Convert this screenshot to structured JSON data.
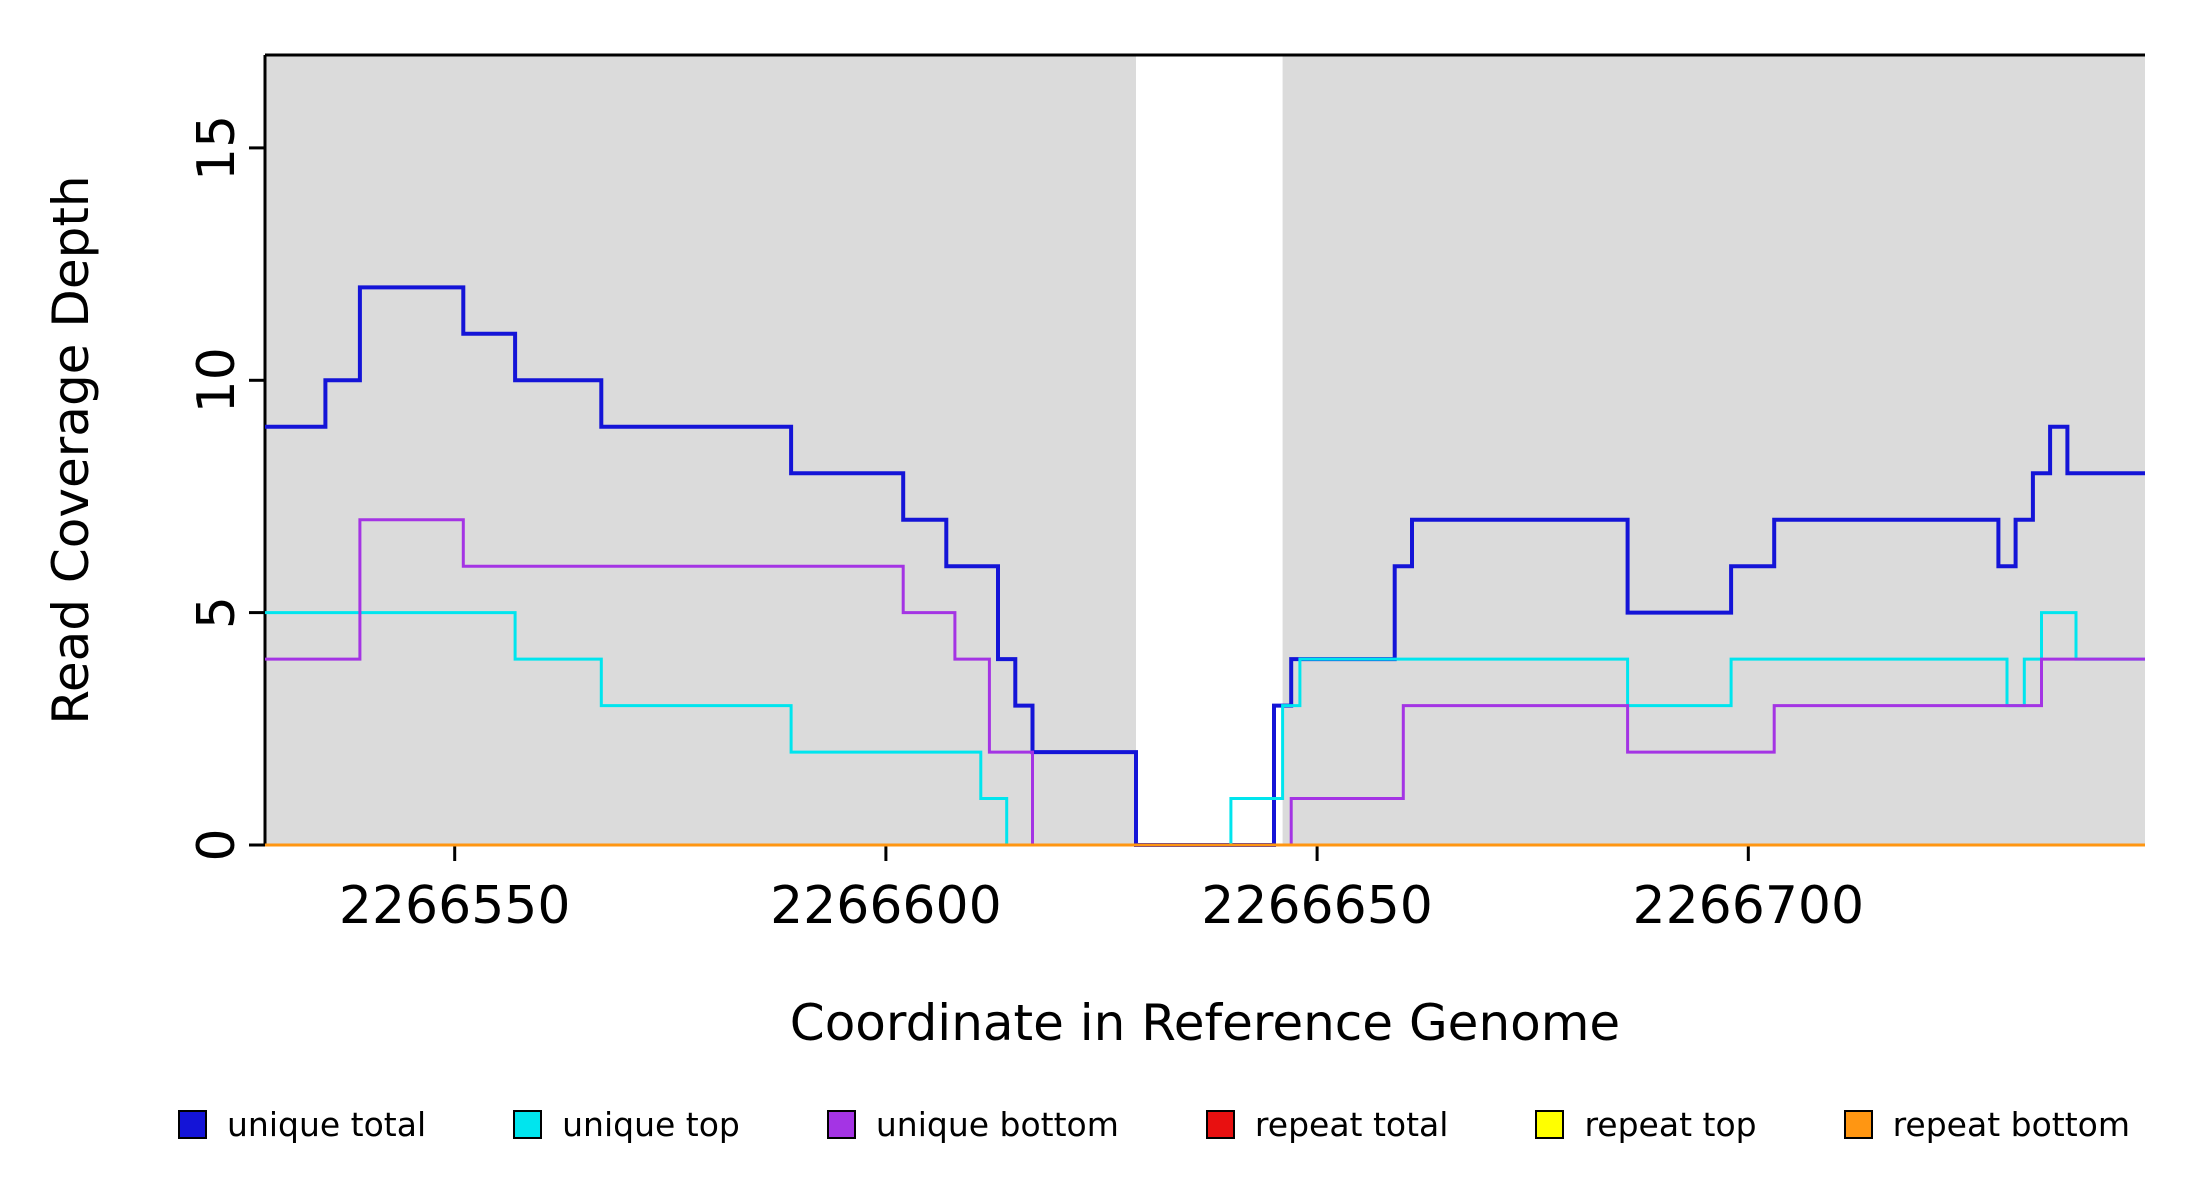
{
  "page": {
    "background": "#ffffff"
  },
  "chart_data": {
    "type": "line",
    "subtype": "step",
    "title": "",
    "xlabel": "Coordinate in Reference Genome",
    "ylabel": "Read Coverage Depth",
    "xlim": [
      2266528,
      2266746
    ],
    "ylim": [
      0,
      17
    ],
    "xticks": [
      2266550,
      2266600,
      2266650,
      2266700
    ],
    "yticks": [
      0,
      5,
      10,
      15
    ],
    "grid": false,
    "legend_position": "bottom",
    "plot_background": "#ffffff",
    "shaded_regions": [
      {
        "x0": 2266528,
        "x1": 2266629,
        "color": "#dbdbdb"
      },
      {
        "x0": 2266646,
        "x1": 2266746,
        "color": "#dbdbdb"
      }
    ],
    "series": [
      {
        "name": "unique total",
        "color": "#1414d7",
        "line_width": 4,
        "steps": [
          [
            2266528,
            9
          ],
          [
            2266535,
            10
          ],
          [
            2266539,
            12
          ],
          [
            2266551,
            11
          ],
          [
            2266557,
            10
          ],
          [
            2266567,
            9
          ],
          [
            2266589,
            8
          ],
          [
            2266602,
            7
          ],
          [
            2266607,
            6
          ],
          [
            2266613,
            4
          ],
          [
            2266615,
            3
          ],
          [
            2266617,
            2
          ],
          [
            2266629,
            0
          ],
          [
            2266645,
            3
          ],
          [
            2266647,
            4
          ],
          [
            2266659,
            6
          ],
          [
            2266661,
            7
          ],
          [
            2266686,
            5
          ],
          [
            2266698,
            6
          ],
          [
            2266703,
            7
          ],
          [
            2266729,
            6
          ],
          [
            2266731,
            7
          ],
          [
            2266733,
            8
          ],
          [
            2266735,
            9
          ],
          [
            2266737,
            8
          ]
        ]
      },
      {
        "name": "unique top",
        "color": "#00e5ee",
        "line_width": 3,
        "steps": [
          [
            2266528,
            5
          ],
          [
            2266557,
            4
          ],
          [
            2266567,
            3
          ],
          [
            2266589,
            2
          ],
          [
            2266611,
            1
          ],
          [
            2266614,
            0
          ],
          [
            2266640,
            1
          ],
          [
            2266646,
            3
          ],
          [
            2266648,
            4
          ],
          [
            2266686,
            3
          ],
          [
            2266698,
            4
          ],
          [
            2266730,
            3
          ],
          [
            2266732,
            4
          ],
          [
            2266734,
            5
          ],
          [
            2266738,
            4
          ]
        ]
      },
      {
        "name": "unique bottom",
        "color": "#a434e4",
        "line_width": 3,
        "steps": [
          [
            2266528,
            4
          ],
          [
            2266539,
            7
          ],
          [
            2266551,
            6
          ],
          [
            2266602,
            5
          ],
          [
            2266608,
            4
          ],
          [
            2266612,
            2
          ],
          [
            2266617,
            0
          ],
          [
            2266647,
            1
          ],
          [
            2266660,
            3
          ],
          [
            2266686,
            2
          ],
          [
            2266703,
            3
          ],
          [
            2266734,
            4
          ]
        ]
      },
      {
        "name": "repeat total",
        "color": "#e81010",
        "line_width": 3,
        "steps": [
          [
            2266528,
            0
          ]
        ]
      },
      {
        "name": "repeat top",
        "color": "#ffff00",
        "line_width": 3,
        "steps": [
          [
            2266528,
            0
          ]
        ]
      },
      {
        "name": "repeat bottom",
        "color": "#ff9612",
        "line_width": 3,
        "steps": [
          [
            2266528,
            0
          ]
        ]
      }
    ]
  }
}
